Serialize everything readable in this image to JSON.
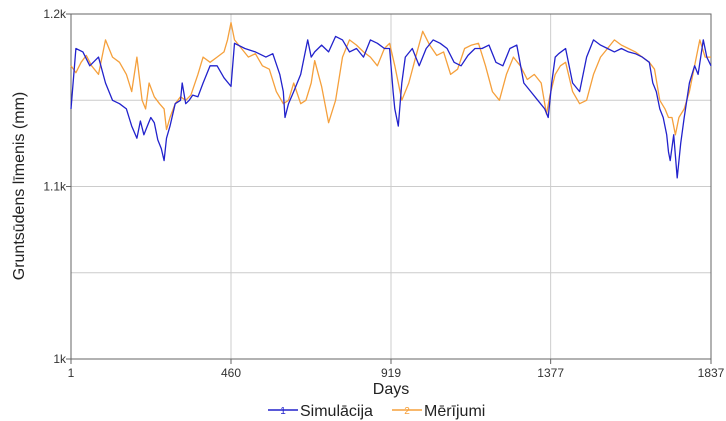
{
  "chart_data": {
    "type": "line",
    "title": "",
    "xlabel": "Days",
    "ylabel": "Gruntsūdens līmenis (mm)",
    "x_ticks": [
      1,
      460,
      919,
      1377,
      1837
    ],
    "x_tick_labels": [
      "1",
      "460",
      "919",
      "1377",
      "1837"
    ],
    "y_ticks": [
      1000,
      1100,
      1200
    ],
    "y_tick_labels": [
      "1k",
      "1.1k",
      "1.2k"
    ],
    "y_gridlines": [
      1050,
      1100,
      1150
    ],
    "xlim": [
      1,
      1837
    ],
    "ylim": [
      1000,
      1200
    ],
    "grid": true,
    "legend_position": "bottom",
    "series": [
      {
        "name": "Simulācija",
        "color": "#2222cc",
        "x": [
          1,
          15,
          35,
          55,
          80,
          100,
          120,
          140,
          160,
          175,
          190,
          200,
          210,
          220,
          230,
          240,
          250,
          260,
          268,
          275,
          285,
          300,
          315,
          320,
          330,
          340,
          350,
          365,
          380,
          400,
          420,
          440,
          460,
          470,
          500,
          530,
          560,
          580,
          600,
          610,
          615,
          625,
          640,
          660,
          680,
          690,
          700,
          720,
          740,
          760,
          780,
          800,
          820,
          840,
          860,
          880,
          900,
          915,
          925,
          930,
          940,
          950,
          960,
          980,
          1000,
          1020,
          1040,
          1060,
          1080,
          1100,
          1120,
          1140,
          1160,
          1180,
          1200,
          1220,
          1240,
          1260,
          1280,
          1300,
          1320,
          1340,
          1360,
          1370,
          1380,
          1390,
          1400,
          1420,
          1440,
          1460,
          1480,
          1500,
          1520,
          1540,
          1560,
          1580,
          1600,
          1620,
          1640,
          1660,
          1670,
          1680,
          1690,
          1700,
          1710,
          1715,
          1720,
          1730,
          1740,
          1750,
          1760,
          1775,
          1790,
          1800,
          1815,
          1825,
          1837
        ],
        "y": [
          1145,
          1180,
          1178,
          1170,
          1175,
          1160,
          1150,
          1148,
          1145,
          1135,
          1128,
          1138,
          1130,
          1135,
          1140,
          1137,
          1127,
          1122,
          1115,
          1128,
          1135,
          1148,
          1150,
          1160,
          1148,
          1150,
          1153,
          1152,
          1160,
          1170,
          1170,
          1163,
          1158,
          1183,
          1180,
          1178,
          1175,
          1177,
          1165,
          1155,
          1140,
          1148,
          1155,
          1165,
          1185,
          1175,
          1178,
          1182,
          1178,
          1187,
          1185,
          1178,
          1180,
          1175,
          1185,
          1183,
          1180,
          1180,
          1155,
          1145,
          1135,
          1160,
          1175,
          1180,
          1170,
          1180,
          1185,
          1183,
          1180,
          1172,
          1170,
          1176,
          1180,
          1180,
          1182,
          1172,
          1170,
          1180,
          1182,
          1160,
          1155,
          1150,
          1145,
          1140,
          1160,
          1175,
          1177,
          1180,
          1160,
          1155,
          1175,
          1185,
          1182,
          1180,
          1178,
          1180,
          1178,
          1177,
          1175,
          1172,
          1160,
          1155,
          1145,
          1140,
          1130,
          1120,
          1115,
          1130,
          1105,
          1125,
          1140,
          1160,
          1170,
          1165,
          1185,
          1175,
          1170
        ]
      },
      {
        "name": "Mērījumi",
        "color": "#f5a03c",
        "x": [
          1,
          15,
          30,
          45,
          60,
          80,
          100,
          120,
          140,
          160,
          175,
          190,
          205,
          215,
          225,
          240,
          255,
          268,
          275,
          285,
          300,
          315,
          330,
          345,
          365,
          380,
          400,
          420,
          440,
          450,
          460,
          470,
          490,
          510,
          530,
          550,
          570,
          590,
          610,
          625,
          640,
          660,
          675,
          690,
          700,
          720,
          740,
          760,
          780,
          800,
          820,
          840,
          860,
          880,
          900,
          915,
          930,
          950,
          970,
          990,
          1010,
          1030,
          1050,
          1070,
          1090,
          1110,
          1130,
          1150,
          1170,
          1190,
          1210,
          1230,
          1250,
          1270,
          1290,
          1310,
          1330,
          1350,
          1365,
          1375,
          1390,
          1405,
          1420,
          1440,
          1460,
          1480,
          1500,
          1520,
          1540,
          1560,
          1580,
          1600,
          1620,
          1640,
          1660,
          1675,
          1690,
          1705,
          1715,
          1725,
          1735,
          1745,
          1760,
          1775,
          1790,
          1805,
          1820,
          1837
        ],
        "y": [
          1170,
          1166,
          1172,
          1176,
          1170,
          1165,
          1185,
          1175,
          1172,
          1165,
          1155,
          1175,
          1150,
          1145,
          1160,
          1152,
          1148,
          1145,
          1133,
          1140,
          1148,
          1152,
          1150,
          1153,
          1165,
          1175,
          1172,
          1175,
          1178,
          1185,
          1195,
          1185,
          1180,
          1175,
          1177,
          1170,
          1168,
          1155,
          1148,
          1150,
          1160,
          1148,
          1150,
          1160,
          1173,
          1158,
          1137,
          1150,
          1175,
          1185,
          1182,
          1178,
          1175,
          1170,
          1180,
          1183,
          1170,
          1150,
          1160,
          1175,
          1190,
          1182,
          1176,
          1178,
          1165,
          1168,
          1180,
          1182,
          1183,
          1170,
          1155,
          1150,
          1165,
          1175,
          1170,
          1162,
          1165,
          1160,
          1142,
          1153,
          1165,
          1170,
          1172,
          1155,
          1148,
          1150,
          1165,
          1175,
          1180,
          1185,
          1182,
          1180,
          1178,
          1175,
          1172,
          1168,
          1150,
          1145,
          1140,
          1140,
          1130,
          1140,
          1145,
          1155,
          1170,
          1185,
          1175,
          1175
        ]
      }
    ]
  }
}
